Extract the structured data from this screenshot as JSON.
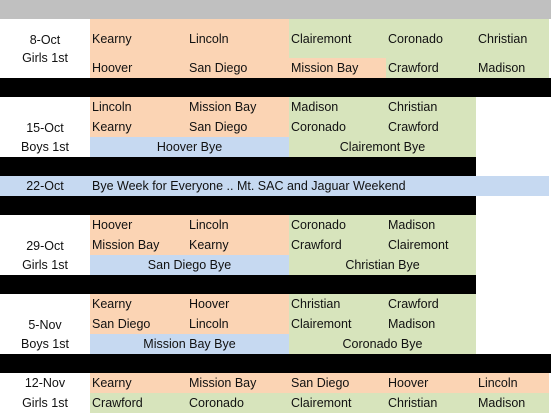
{
  "weeks": [
    {
      "date": "8-Oct",
      "group": "Girls 1st",
      "row1": [
        "Kearny",
        "Lincoln",
        "Clairemont",
        "Coronado",
        "Christian"
      ],
      "row2": [
        "Hoover",
        "San Diego",
        "Mission Bay",
        "Crawford",
        "Madison"
      ]
    },
    {
      "date": "15-Oct",
      "group": "Boys 1st",
      "row1": [
        "Lincoln",
        "Mission Bay",
        "Madison",
        "Christian"
      ],
      "row2": [
        "Kearny",
        "San Diego",
        "Coronado",
        "Crawford"
      ],
      "bye_left": "Hoover Bye",
      "bye_right": "Clairemont Bye"
    },
    {
      "date": "22-Oct",
      "note": "Bye Week for Everyone .. Mt. SAC and Jaguar Weekend"
    },
    {
      "date": "29-Oct",
      "group": "Girls 1st",
      "row1": [
        "Hoover",
        "Lincoln",
        "Coronado",
        "Madison"
      ],
      "row2": [
        "Mission Bay",
        "Kearny",
        "Crawford",
        "Clairemont"
      ],
      "bye_left": "San Diego Bye",
      "bye_right": "Christian Bye"
    },
    {
      "date": "5-Nov",
      "group": "Boys 1st",
      "row1": [
        "Kearny",
        "Hoover",
        "Christian",
        "Crawford"
      ],
      "row2": [
        "San Diego",
        "Lincoln",
        "Clairemont",
        "Madison"
      ],
      "bye_left": "Mission Bay Bye",
      "bye_right": "Coronado Bye"
    },
    {
      "date": "12-Nov",
      "group": "Girls 1st",
      "row1": [
        "Kearny",
        "Mission Bay",
        "San Diego",
        "Hoover",
        "Lincoln"
      ],
      "row2": [
        "Crawford",
        "Coronado",
        "Clairemont",
        "Christian",
        "Madison"
      ]
    }
  ],
  "colors": {
    "peach": "#fbd4b4",
    "green": "#d7e4bc",
    "blue": "#c6d9f1",
    "separator": "#000000",
    "header": "#c0c0c0"
  }
}
